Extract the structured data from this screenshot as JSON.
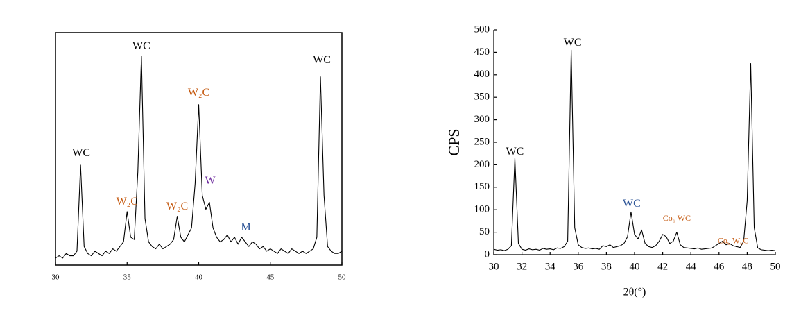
{
  "chart_data": [
    {
      "type": "line",
      "frame": true,
      "xlim": [
        30,
        50
      ],
      "xticks": [
        30,
        35,
        40,
        45,
        50
      ],
      "ylim": [
        0,
        100
      ],
      "x": [
        30,
        30.25,
        30.5,
        30.75,
        31,
        31.25,
        31.5,
        31.75,
        32,
        32.25,
        32.5,
        32.75,
        33,
        33.25,
        33.5,
        33.75,
        34,
        34.25,
        34.5,
        34.75,
        35,
        35.25,
        35.5,
        35.75,
        36,
        36.25,
        36.5,
        36.75,
        37,
        37.25,
        37.5,
        37.75,
        38,
        38.25,
        38.5,
        38.75,
        39,
        39.25,
        39.5,
        39.75,
        40,
        40.25,
        40.5,
        40.75,
        41,
        41.25,
        41.5,
        41.75,
        42,
        42.25,
        42.5,
        42.75,
        43,
        43.25,
        43.5,
        43.75,
        44,
        44.25,
        44.5,
        44.75,
        45,
        45.25,
        45.5,
        45.75,
        46,
        46.25,
        46.5,
        46.75,
        47,
        47.25,
        47.5,
        47.75,
        48,
        48.25,
        48.5,
        48.75,
        49,
        49.25,
        49.5,
        49.75,
        50
      ],
      "series": [
        {
          "color": "#000000",
          "values": [
            3,
            4,
            3,
            5,
            4,
            4,
            6,
            43,
            8,
            5,
            4,
            6,
            5,
            4,
            6,
            5,
            7,
            6,
            8,
            10,
            23,
            12,
            11,
            40,
            90,
            20,
            10,
            8,
            7,
            9,
            7,
            8,
            9,
            11,
            21,
            12,
            10,
            13,
            16,
            35,
            69,
            30,
            24,
            27,
            16,
            12,
            10,
            11,
            13,
            10,
            12,
            9,
            12,
            10,
            8,
            10,
            9,
            7,
            8,
            6,
            7,
            6,
            5,
            7,
            6,
            5,
            7,
            6,
            5,
            6,
            5,
            6,
            7,
            12,
            81,
            30,
            8,
            6,
            5,
            5,
            6
          ]
        }
      ],
      "annotations": [
        {
          "text": "WC",
          "x": 31.8,
          "y": 48,
          "color": "#000000"
        },
        {
          "text": "W₂C",
          "x": 35,
          "y": 27,
          "color": "#c55a11"
        },
        {
          "text": "WC",
          "x": 36,
          "y": 94,
          "color": "#000000"
        },
        {
          "text": "W₂C",
          "x": 38.5,
          "y": 25,
          "color": "#c55a11"
        },
        {
          "text": "W₂C",
          "x": 40,
          "y": 74,
          "color": "#c55a11"
        },
        {
          "text": "W",
          "x": 40.8,
          "y": 36,
          "color": "#7030a0"
        },
        {
          "text": "M",
          "x": 43.3,
          "y": 16,
          "color": "#2e5597"
        },
        {
          "text": "WC",
          "x": 48.6,
          "y": 88,
          "color": "#000000"
        }
      ]
    },
    {
      "type": "line",
      "frame": false,
      "xlabel": "2θ(°)",
      "ylabel": "CPS",
      "xlim": [
        30,
        50
      ],
      "xticks": [
        30,
        32,
        34,
        36,
        38,
        40,
        42,
        44,
        46,
        48,
        50
      ],
      "ylim": [
        0,
        500
      ],
      "yticks": [
        0,
        50,
        100,
        150,
        200,
        250,
        300,
        350,
        400,
        450,
        500
      ],
      "x": [
        30,
        30.25,
        30.5,
        30.75,
        31,
        31.25,
        31.5,
        31.75,
        32,
        32.25,
        32.5,
        32.75,
        33,
        33.25,
        33.5,
        33.75,
        34,
        34.25,
        34.5,
        34.75,
        35,
        35.25,
        35.5,
        35.75,
        36,
        36.25,
        36.5,
        36.75,
        37,
        37.25,
        37.5,
        37.75,
        38,
        38.25,
        38.5,
        38.75,
        39,
        39.25,
        39.5,
        39.75,
        40,
        40.25,
        40.5,
        40.75,
        41,
        41.25,
        41.5,
        41.75,
        42,
        42.25,
        42.5,
        42.75,
        43,
        43.25,
        43.5,
        43.75,
        44,
        44.25,
        44.5,
        44.75,
        45,
        45.25,
        45.5,
        45.75,
        46,
        46.25,
        46.5,
        46.75,
        47,
        47.25,
        47.5,
        47.75,
        48,
        48.25,
        48.5,
        48.75,
        49,
        49.25,
        49.5,
        49.75,
        50
      ],
      "series": [
        {
          "color": "#000000",
          "values": [
            12,
            10,
            11,
            9,
            12,
            20,
            215,
            25,
            12,
            10,
            13,
            11,
            12,
            10,
            14,
            12,
            13,
            11,
            15,
            14,
            18,
            30,
            455,
            60,
            22,
            16,
            14,
            15,
            13,
            14,
            12,
            20,
            18,
            22,
            16,
            18,
            20,
            25,
            40,
            95,
            45,
            35,
            55,
            25,
            18,
            16,
            20,
            30,
            45,
            40,
            25,
            30,
            50,
            22,
            16,
            15,
            14,
            13,
            15,
            12,
            13,
            14,
            15,
            20,
            25,
            30,
            22,
            25,
            20,
            18,
            16,
            30,
            120,
            425,
            60,
            15,
            11,
            10,
            9,
            10,
            9
          ]
        }
      ],
      "annotations": [
        {
          "text": "WC",
          "x": 31.5,
          "y": 228,
          "color": "#000000"
        },
        {
          "text": "WC",
          "x": 35.6,
          "y": 470,
          "color": "#000000"
        },
        {
          "text": "WC",
          "x": 39.8,
          "y": 112,
          "color": "#2e5597"
        },
        {
          "text": "Co₆ WC",
          "x": 43,
          "y": 80,
          "color": "#c55a11"
        },
        {
          "text": "Co₆ W₆C",
          "x": 47,
          "y": 30,
          "color": "#c55a11"
        }
      ]
    }
  ]
}
